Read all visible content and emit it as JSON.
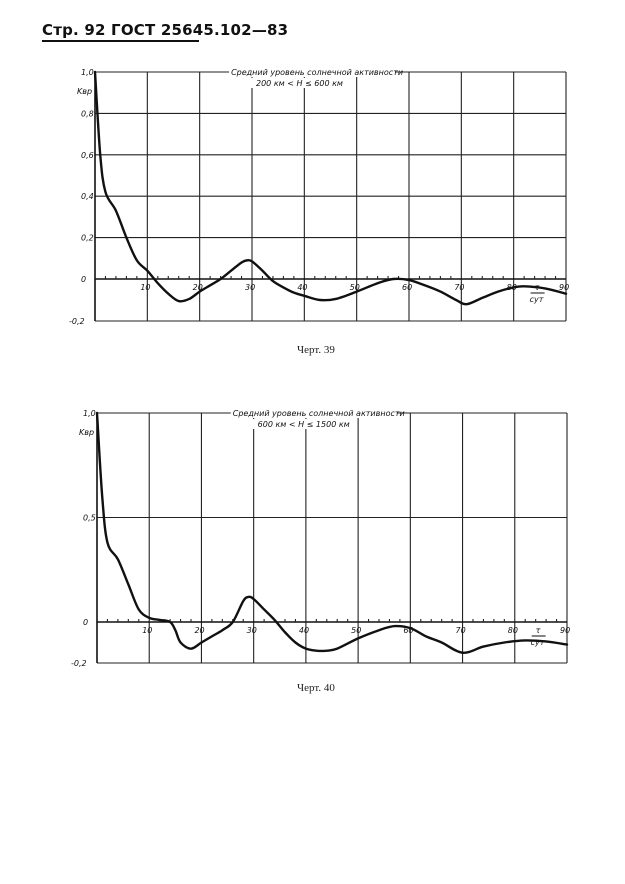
{
  "header": {
    "text": "Стр. 92 ГОСТ 25645.102—83"
  },
  "charts": [
    {
      "caption": "Черт. 39",
      "title_line1": "Средний уровень солнечной активности",
      "title_line2": "200 км < H ≤ 600 км",
      "ylabel": "Kвр",
      "xlabel_num": "τ",
      "xlabel_den": "сут"
    },
    {
      "caption": "Черт. 40",
      "title_line1": "Средний уровень солнечной активности",
      "title_line2": "600 км < H ≤ 1500 км",
      "ylabel": "Kвр",
      "xlabel_num": "τ",
      "xlabel_den": "сут"
    }
  ],
  "chart_data": [
    {
      "type": "line",
      "title": "Средний уровень солнечной активности, 200 км < H ≤ 600 км",
      "caption": "Черт. 39",
      "xlabel": "τ, сут",
      "ylabel": "Kвр",
      "xlim": [
        0,
        90
      ],
      "ylim": [
        -0.2,
        1.0
      ],
      "xticks": [
        10,
        20,
        30,
        40,
        50,
        60,
        70,
        80,
        90
      ],
      "yticks": [
        1.0,
        0.8,
        0.6,
        0.4,
        0.2,
        0,
        -0.2
      ],
      "ytick_labels": [
        "1,0",
        "0,8",
        "0,6",
        "0,4",
        "0,2",
        "0",
        "-0,2"
      ],
      "grid": true,
      "series": [
        {
          "name": "Kвр",
          "x": [
            0,
            1,
            2,
            4,
            6,
            8,
            10,
            12,
            14,
            16,
            18,
            20,
            22,
            24,
            26,
            28,
            29,
            30,
            32,
            34,
            36,
            38,
            40,
            43,
            46,
            50,
            54,
            57,
            60,
            63,
            66,
            69,
            71,
            74,
            77,
            80,
            82,
            86,
            90
          ],
          "y": [
            1.0,
            0.6,
            0.42,
            0.33,
            0.2,
            0.09,
            0.04,
            -0.02,
            -0.07,
            -0.105,
            -0.095,
            -0.06,
            -0.03,
            0.0,
            0.04,
            0.08,
            0.09,
            0.085,
            0.04,
            -0.01,
            -0.04,
            -0.065,
            -0.08,
            -0.1,
            -0.095,
            -0.06,
            -0.02,
            0.0,
            -0.005,
            -0.03,
            -0.06,
            -0.1,
            -0.12,
            -0.09,
            -0.06,
            -0.04,
            -0.035,
            -0.045,
            -0.07
          ]
        }
      ]
    },
    {
      "type": "line",
      "title": "Средний уровень солнечной активности, 600 км < H ≤ 1500 км",
      "caption": "Черт. 40",
      "xlabel": "τ, сут",
      "ylabel": "Kвр",
      "xlim": [
        0,
        90
      ],
      "ylim": [
        -0.2,
        1.0
      ],
      "xticks": [
        10,
        20,
        30,
        40,
        50,
        60,
        70,
        80,
        90
      ],
      "yticks": [
        1.0,
        0.5,
        0,
        -0.2
      ],
      "ytick_labels": [
        "1,0",
        "0,5",
        "0",
        "-0,2"
      ],
      "grid": true,
      "series": [
        {
          "name": "Kвр",
          "x": [
            0,
            1,
            2,
            4,
            6,
            8,
            10,
            12,
            14,
            15,
            16,
            18,
            20,
            22,
            24,
            26,
            28,
            29,
            30,
            32,
            34,
            36,
            38,
            40,
            42,
            44,
            46,
            50,
            54,
            57,
            60,
            63,
            66,
            70,
            74,
            78,
            82,
            86,
            90
          ],
          "y": [
            1.0,
            0.6,
            0.38,
            0.3,
            0.18,
            0.06,
            0.02,
            0.01,
            0.0,
            -0.04,
            -0.1,
            -0.13,
            -0.1,
            -0.07,
            -0.04,
            0.0,
            0.1,
            0.12,
            0.11,
            0.06,
            0.01,
            -0.05,
            -0.1,
            -0.13,
            -0.14,
            -0.14,
            -0.13,
            -0.08,
            -0.04,
            -0.02,
            -0.03,
            -0.07,
            -0.1,
            -0.15,
            -0.12,
            -0.1,
            -0.09,
            -0.095,
            -0.11
          ]
        }
      ]
    }
  ]
}
